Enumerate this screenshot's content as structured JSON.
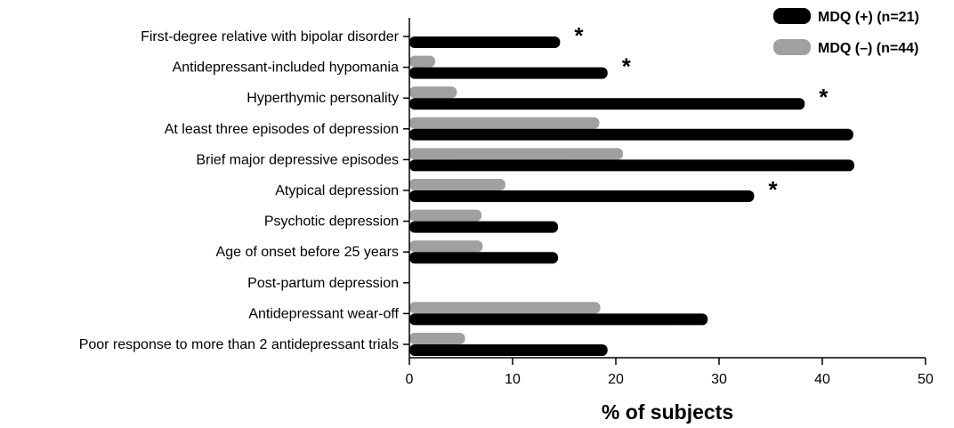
{
  "chart_data": {
    "type": "bar",
    "orientation": "horizontal",
    "title": "",
    "xlabel": "% of subjects",
    "ylabel": "",
    "xlim": [
      0,
      50
    ],
    "xticks": [
      0,
      10,
      20,
      30,
      40,
      50
    ],
    "grid": false,
    "legend_position": "top-right",
    "categories": [
      "First-degree relative with bipolar disorder",
      "Antidepressant-included hypomania",
      "Hyperthymic personality",
      "At least three episodes of depression",
      "Brief major depressive episodes",
      "Atypical depression",
      "Psychotic depression",
      "Age of onset before 25 years",
      "Post-partum depression",
      "Antidepressant wear-off",
      "Poor response to more than 2 antidepressant trials"
    ],
    "series": [
      {
        "name": "MDQ (+) (n=21)",
        "color": "#000000",
        "values": [
          14.6,
          19.2,
          38.3,
          43.0,
          43.1,
          33.4,
          14.4,
          14.4,
          0,
          28.9,
          19.2
        ]
      },
      {
        "name": "MDQ (–) (n=44)",
        "color": "#a0a0a0",
        "values": [
          0,
          2.5,
          4.6,
          18.4,
          20.7,
          9.3,
          7.0,
          7.1,
          0,
          18.5,
          5.4
        ]
      }
    ],
    "annotations": [
      {
        "category_index": 0,
        "text": "*"
      },
      {
        "category_index": 1,
        "text": "*"
      },
      {
        "category_index": 2,
        "text": "*"
      },
      {
        "category_index": 5,
        "text": "*"
      }
    ]
  }
}
